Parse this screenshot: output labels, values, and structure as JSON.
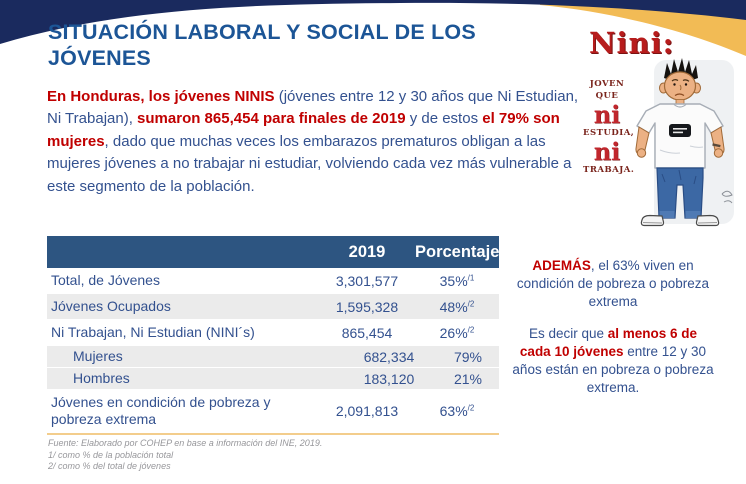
{
  "colors": {
    "banner_navy": "#1a2a5e",
    "banner_gold": "#f2bb55",
    "title_blue": "#1c5596",
    "body_blue": "#33518f",
    "accent_red": "#c00000",
    "table_header_bg": "#2d5581",
    "shaded_row": "#ebebeb",
    "gold_rule": "#f3cd8c"
  },
  "title_lines": [
    "SITUACIÓN LABORAL Y SOCIAL DE LOS",
    "JÓVENES"
  ],
  "intro_segments": [
    {
      "text": "En Honduras, los jóvenes NINIS ",
      "style": "red"
    },
    {
      "text": "(jóvenes entre 12 y 30 años que Ni Estudian, Ni Trabajan), ",
      "style": "blue"
    },
    {
      "text": "sumaron 865,454 para finales de 2019",
      "style": "red"
    },
    {
      "text": " y de estos ",
      "style": "blue"
    },
    {
      "text": "el 79% son mujeres",
      "style": "red"
    },
    {
      "text": ", dado que muchas veces los embarazos prematuros obligan a las mujeres jóvenes a no trabajar ni estudiar, volviendo cada vez más vulnerable a este segmento de la población.",
      "style": "blue"
    }
  ],
  "table": {
    "headers": {
      "label": "",
      "year": "2019",
      "pct": "Porcentaje"
    },
    "rows": [
      {
        "label": "Total, de Jóvenes",
        "value": "3,301,577",
        "pct": "35%",
        "sup": "/1",
        "indent": false,
        "shaded": false,
        "tight": false
      },
      {
        "label": "Jóvenes Ocupados",
        "value": "1,595,328",
        "pct": "48%",
        "sup": "/2",
        "indent": false,
        "shaded": true,
        "tight": false
      },
      {
        "label": "Ni Trabajan, Ni Estudian (NINI´s)",
        "value": "865,454",
        "pct": "26%",
        "sup": "/2",
        "indent": false,
        "shaded": false,
        "tight": false
      },
      {
        "label": "Mujeres",
        "value": "682,334",
        "pct": "79%",
        "sup": "",
        "indent": true,
        "shaded": true,
        "tight": true
      },
      {
        "label": "Hombres",
        "value": "183,120",
        "pct": "21%",
        "sup": "",
        "indent": true,
        "shaded": true,
        "tight": true
      },
      {
        "label": "Jóvenes en condición de pobreza y pobreza extrema",
        "value": "2,091,813",
        "pct": "63%",
        "sup": "/2",
        "indent": false,
        "shaded": false,
        "tight": false
      }
    ]
  },
  "footnotes": [
    "Fuente: Elaborado por COHEP en base a información del INE, 2019.",
    "1/ como % de la población total",
    "2/ como % del total de jóvenes"
  ],
  "aside": {
    "p1_segments": [
      {
        "text": "ADEMÁS",
        "style": "red"
      },
      {
        "text": ", el 63% viven en condición de pobreza o pobreza extrema",
        "style": "blue"
      }
    ],
    "p2_segments": [
      {
        "text": "Es decir que ",
        "style": "blue"
      },
      {
        "text": "al menos 6 de cada 10 jóvenes",
        "style": "red"
      },
      {
        "text": " entre 12 y 30 años están en pobreza o pobreza extrema.",
        "style": "blue"
      }
    ]
  },
  "cartoon": {
    "title": "Nini:",
    "words": [
      {
        "text": "JOVEN",
        "size": "small"
      },
      {
        "text": "QUE",
        "size": "small"
      },
      {
        "text": "ni",
        "size": "big"
      },
      {
        "text": "ESTUDIA,",
        "size": "small"
      },
      {
        "text": "ni",
        "size": "big"
      },
      {
        "text": "TRABAJA.",
        "size": "small"
      }
    ]
  }
}
